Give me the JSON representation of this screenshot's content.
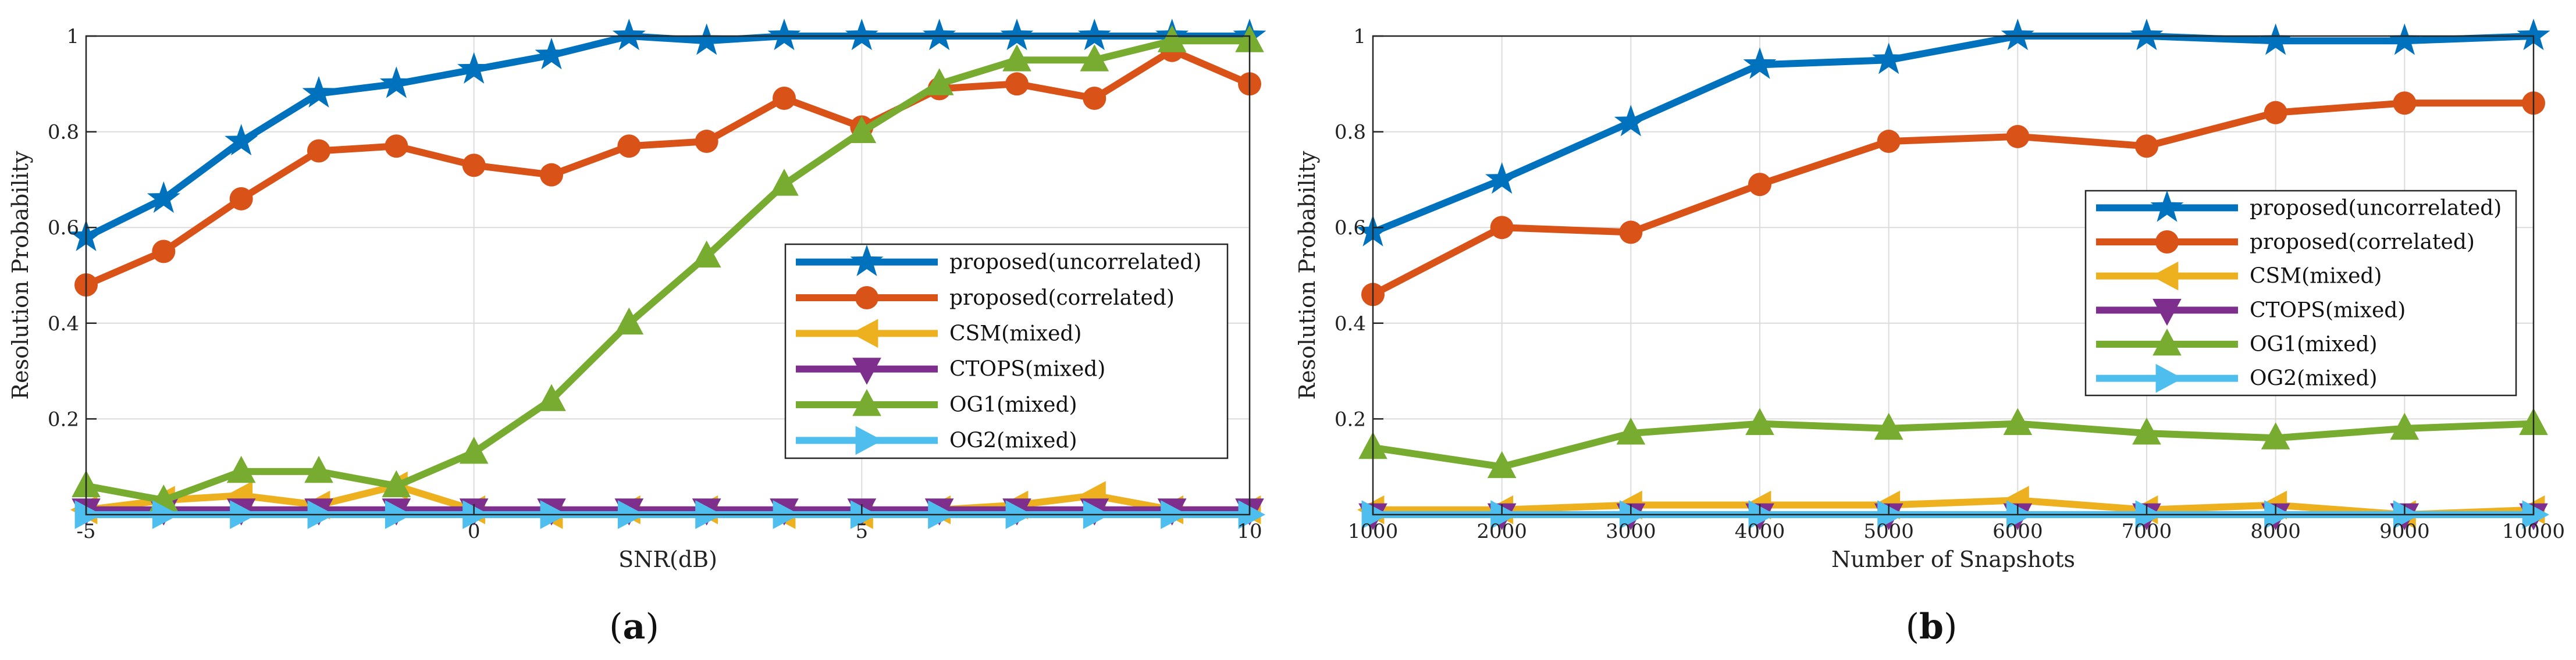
{
  "captions": {
    "a_open": "(",
    "a_letter": "a",
    "a_close": ")",
    "b_open": "(",
    "b_letter": "b",
    "b_close": ")"
  },
  "colors": {
    "blue": "#0072BD",
    "orange": "#D95319",
    "yellow": "#EDB120",
    "purple": "#7E2F8E",
    "green": "#77AC30",
    "cyan": "#4DBEEE"
  },
  "chart_data": [
    {
      "type": "line",
      "id": "a",
      "xlabel": "SNR(dB)",
      "ylabel": "Resolution Probability",
      "xlim": [
        -5,
        10
      ],
      "ylim": [
        0,
        1
      ],
      "xticks": [
        -5,
        0,
        5,
        10
      ],
      "xtick_labels": [
        "-5",
        "0",
        "5",
        "10"
      ],
      "yticks": [
        0.2,
        0.4,
        0.6,
        0.8,
        1
      ],
      "ytick_labels": [
        "0.2",
        "0.4",
        "0.6",
        "0.8",
        "1"
      ],
      "grid": true,
      "legend_position": "center-right",
      "x": [
        -5,
        -4,
        -3,
        -2,
        -1,
        0,
        1,
        2,
        3,
        4,
        5,
        6,
        7,
        8,
        9,
        10
      ],
      "series": [
        {
          "name": "proposed(uncorrelated)",
          "color": "#0072BD",
          "marker": "star",
          "values": [
            0.58,
            0.66,
            0.78,
            0.88,
            0.9,
            0.93,
            0.96,
            1.0,
            0.99,
            1.0,
            1.0,
            1.0,
            1.0,
            1.0,
            1.0,
            1.0
          ]
        },
        {
          "name": "proposed(correlated)",
          "color": "#D95319",
          "marker": "circle",
          "values": [
            0.48,
            0.55,
            0.66,
            0.76,
            0.77,
            0.73,
            0.71,
            0.77,
            0.78,
            0.87,
            0.81,
            0.89,
            0.9,
            0.87,
            0.97,
            0.9
          ]
        },
        {
          "name": "CSM(mixed)",
          "color": "#EDB120",
          "marker": "triangle-left",
          "values": [
            0.01,
            0.03,
            0.04,
            0.02,
            0.06,
            0.01,
            0.0,
            0.01,
            0.01,
            0.0,
            0.0,
            0.01,
            0.02,
            0.04,
            0.01,
            0.01
          ]
        },
        {
          "name": "CTOPS(mixed)",
          "color": "#7E2F8E",
          "marker": "triangle-down",
          "values": [
            0.01,
            0.01,
            0.01,
            0.01,
            0.01,
            0.01,
            0.01,
            0.01,
            0.01,
            0.01,
            0.01,
            0.01,
            0.01,
            0.01,
            0.01,
            0.01
          ]
        },
        {
          "name": "OG1(mixed)",
          "color": "#77AC30",
          "marker": "triangle-up",
          "values": [
            0.06,
            0.03,
            0.09,
            0.09,
            0.06,
            0.13,
            0.24,
            0.4,
            0.54,
            0.69,
            0.8,
            0.9,
            0.95,
            0.95,
            0.99,
            0.99
          ]
        },
        {
          "name": "OG2(mixed)",
          "color": "#4DBEEE",
          "marker": "triangle-right",
          "values": [
            0.0,
            0.0,
            0.0,
            0.0,
            0.0,
            0.0,
            0.0,
            0.0,
            0.0,
            0.0,
            0.0,
            0.0,
            0.0,
            0.0,
            0.0,
            0.0
          ]
        }
      ]
    },
    {
      "type": "line",
      "id": "b",
      "xlabel": "Number of Snapshots",
      "ylabel": "Resolution Probability",
      "xlim": [
        1000,
        10000
      ],
      "ylim": [
        0,
        1
      ],
      "xticks": [
        1000,
        2000,
        3000,
        4000,
        5000,
        6000,
        7000,
        8000,
        9000,
        10000
      ],
      "xtick_labels": [
        "1000",
        "2000",
        "3000",
        "4000",
        "5000",
        "6000",
        "7000",
        "8000",
        "9000",
        "10000"
      ],
      "yticks": [
        0.2,
        0.4,
        0.6,
        0.8,
        1
      ],
      "ytick_labels": [
        "0.2",
        "0.4",
        "0.6",
        "0.8",
        "1"
      ],
      "grid": true,
      "legend_position": "center-right",
      "x": [
        1000,
        2000,
        3000,
        4000,
        5000,
        6000,
        7000,
        8000,
        9000,
        10000
      ],
      "series": [
        {
          "name": "proposed(uncorrelated)",
          "color": "#0072BD",
          "marker": "star",
          "values": [
            0.59,
            0.7,
            0.82,
            0.94,
            0.95,
            1.0,
            1.0,
            0.99,
            0.99,
            1.0
          ]
        },
        {
          "name": "proposed(correlated)",
          "color": "#D95319",
          "marker": "circle",
          "values": [
            0.46,
            0.6,
            0.59,
            0.69,
            0.78,
            0.79,
            0.77,
            0.84,
            0.86,
            0.86
          ]
        },
        {
          "name": "CSM(mixed)",
          "color": "#EDB120",
          "marker": "triangle-left",
          "values": [
            0.01,
            0.01,
            0.02,
            0.02,
            0.02,
            0.03,
            0.01,
            0.02,
            0.0,
            0.01
          ]
        },
        {
          "name": "CTOPS(mixed)",
          "color": "#7E2F8E",
          "marker": "triangle-down",
          "values": [
            0.0,
            0.0,
            0.0,
            0.0,
            0.0,
            0.0,
            0.0,
            0.0,
            0.0,
            0.0
          ]
        },
        {
          "name": "OG1(mixed)",
          "color": "#77AC30",
          "marker": "triangle-up",
          "values": [
            0.14,
            0.1,
            0.17,
            0.19,
            0.18,
            0.19,
            0.17,
            0.16,
            0.18,
            0.19
          ]
        },
        {
          "name": "OG2(mixed)",
          "color": "#4DBEEE",
          "marker": "triangle-right",
          "values": [
            0.0,
            0.0,
            0.0,
            0.0,
            0.0,
            0.0,
            0.0,
            0.0,
            0.0,
            0.0
          ]
        }
      ]
    }
  ]
}
